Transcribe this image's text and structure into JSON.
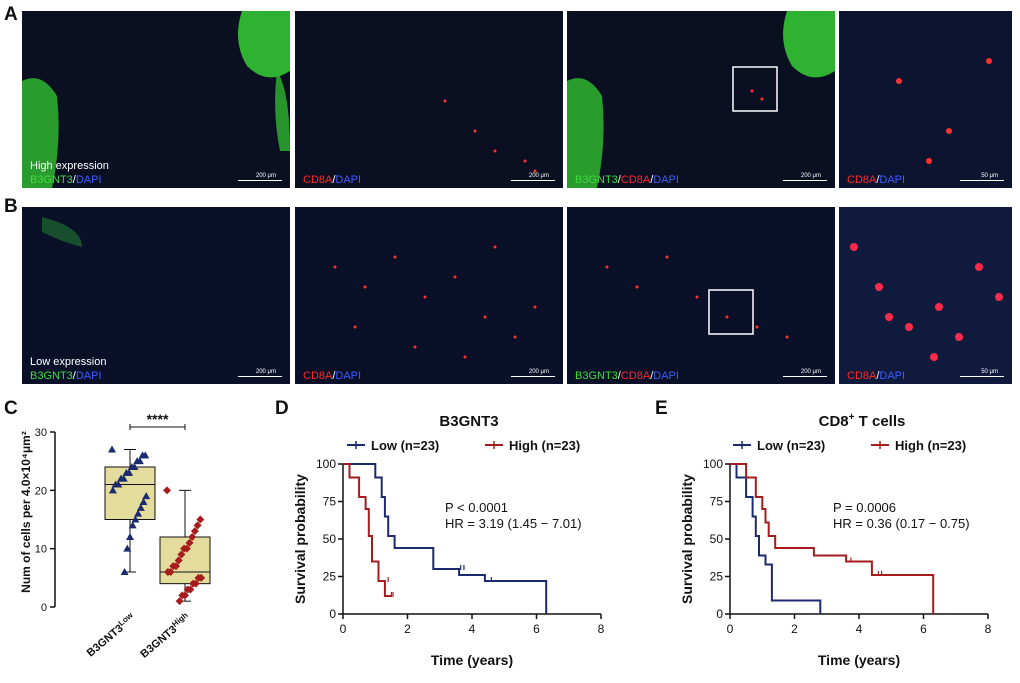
{
  "panels": {
    "a": "A",
    "b": "B",
    "c": "C",
    "d": "D",
    "e": "E"
  },
  "micrographs": {
    "row_a_expression": "High expression",
    "row_b_expression": "Low expression",
    "b3gnt3": "B3GNT3",
    "cd8a": "CD8A",
    "dapi": "DAPI",
    "slash": "/",
    "scale_200": "200 μm",
    "scale_50": "50 μm"
  },
  "colors": {
    "green_channel": "#3fdc3f",
    "red_channel": "#ff2828",
    "blue_channel": "#3c5cff",
    "low_series": "#1c2a6e",
    "high_series": "#a61c1c",
    "box_fill": "#e3dc9c"
  },
  "chart_data": [
    {
      "type": "box",
      "ylabel": "Num of cells per 4.0×10⁴μm²",
      "ylim": [
        0,
        30
      ],
      "yticks": [
        0,
        10,
        20,
        30
      ],
      "categories": [
        "B3GNT3Low",
        "B3GNT3High"
      ],
      "category_base": [
        "B3GNT3",
        "B3GNT3"
      ],
      "category_sup": [
        "Low",
        "High"
      ],
      "significance": "****",
      "series": [
        {
          "box": {
            "min": 6,
            "q1": 15,
            "median": 21,
            "q3": 24,
            "max": 27
          },
          "marker": "triangle",
          "values": [
            27,
            26,
            26,
            25,
            25,
            24,
            24,
            23,
            23,
            22,
            22,
            21,
            21,
            20,
            19,
            18,
            17,
            16,
            15,
            14,
            12,
            10,
            6
          ]
        },
        {
          "box": {
            "min": 1,
            "q1": 4,
            "median": 6,
            "q3": 12,
            "max": 20
          },
          "marker": "diamond",
          "values": [
            20,
            15,
            14,
            13,
            12,
            11,
            10,
            10,
            9,
            8,
            7,
            7,
            6,
            6,
            5,
            5,
            4,
            4,
            3,
            3,
            2,
            2,
            1
          ]
        }
      ]
    },
    {
      "type": "line",
      "title": "B3GNT3",
      "xlabel": "Time (years)",
      "ylabel": "Survival probability",
      "xlim": [
        0,
        8
      ],
      "ylim": [
        0,
        100
      ],
      "xticks": [
        0,
        2,
        4,
        6,
        8
      ],
      "yticks": [
        0,
        25,
        50,
        75,
        100
      ],
      "legend_title_low": "Low (n=23)",
      "legend_title_high": "High (n=23)",
      "annotation_p": "P < 0.0001",
      "annotation_hr": "HR = 3.19 (1.45 − 7.01)",
      "series": [
        {
          "name": "Low (n=23)",
          "steps": [
            [
              0,
              100
            ],
            [
              1.0,
              100
            ],
            [
              1.0,
              91
            ],
            [
              1.2,
              91
            ],
            [
              1.2,
              78
            ],
            [
              1.3,
              78
            ],
            [
              1.3,
              65
            ],
            [
              1.4,
              65
            ],
            [
              1.4,
              52
            ],
            [
              1.6,
              52
            ],
            [
              1.6,
              44
            ],
            [
              2.8,
              44
            ],
            [
              2.8,
              30
            ],
            [
              3.6,
              30
            ],
            [
              3.6,
              26
            ],
            [
              4.4,
              26
            ],
            [
              4.4,
              22
            ],
            [
              6.3,
              22
            ],
            [
              6.3,
              0
            ]
          ],
          "censors": [
            [
              3.65,
              30
            ],
            [
              3.75,
              30
            ],
            [
              4.6,
              22
            ]
          ]
        },
        {
          "name": "High (n=23)",
          "steps": [
            [
              0,
              100
            ],
            [
              0.2,
              100
            ],
            [
              0.2,
              91
            ],
            [
              0.5,
              91
            ],
            [
              0.5,
              78
            ],
            [
              0.7,
              78
            ],
            [
              0.7,
              70
            ],
            [
              0.8,
              70
            ],
            [
              0.8,
              52
            ],
            [
              0.9,
              52
            ],
            [
              0.9,
              35
            ],
            [
              1.1,
              35
            ],
            [
              1.1,
              22
            ],
            [
              1.3,
              22
            ],
            [
              1.3,
              12
            ],
            [
              1.5,
              12
            ]
          ],
          "censors": [
            [
              1.4,
              22
            ],
            [
              1.5,
              12
            ],
            [
              1.55,
              12
            ]
          ]
        }
      ]
    },
    {
      "type": "line",
      "title": "CD8⁺ T cells",
      "title_base": "CD8",
      "title_sup": "+",
      "title_rest": " T cells",
      "xlabel": "Time (years)",
      "ylabel": "Survival probability",
      "xlim": [
        0,
        8
      ],
      "ylim": [
        0,
        100
      ],
      "xticks": [
        0,
        2,
        4,
        6,
        8
      ],
      "yticks": [
        0,
        25,
        50,
        75,
        100
      ],
      "legend_title_low": "Low (n=23)",
      "legend_title_high": "High (n=23)",
      "annotation_p": "P = 0.0006",
      "annotation_hr": "HR = 0.36 (0.17 − 0.75)",
      "series": [
        {
          "name": "Low (n=23)",
          "steps": [
            [
              0,
              100
            ],
            [
              0.2,
              100
            ],
            [
              0.2,
              91
            ],
            [
              0.5,
              91
            ],
            [
              0.5,
              78
            ],
            [
              0.7,
              78
            ],
            [
              0.7,
              65
            ],
            [
              0.8,
              65
            ],
            [
              0.8,
              52
            ],
            [
              0.9,
              52
            ],
            [
              0.9,
              39
            ],
            [
              1.1,
              39
            ],
            [
              1.1,
              33
            ],
            [
              1.3,
              33
            ],
            [
              1.3,
              9
            ],
            [
              2.8,
              9
            ],
            [
              2.8,
              0
            ]
          ],
          "censors": []
        },
        {
          "name": "High (n=23)",
          "steps": [
            [
              0,
              100
            ],
            [
              0.5,
              100
            ],
            [
              0.5,
              91
            ],
            [
              0.8,
              91
            ],
            [
              0.8,
              78
            ],
            [
              1.0,
              78
            ],
            [
              1.0,
              70
            ],
            [
              1.1,
              70
            ],
            [
              1.1,
              61
            ],
            [
              1.2,
              61
            ],
            [
              1.2,
              52
            ],
            [
              1.4,
              52
            ],
            [
              1.4,
              44
            ],
            [
              2.6,
              44
            ],
            [
              2.6,
              39
            ],
            [
              3.6,
              39
            ],
            [
              3.6,
              35
            ],
            [
              4.4,
              35
            ],
            [
              4.4,
              26
            ],
            [
              6.3,
              26
            ],
            [
              6.3,
              0
            ]
          ],
          "censors": [
            [
              3.75,
              35
            ],
            [
              4.6,
              26
            ],
            [
              4.7,
              26
            ]
          ]
        }
      ]
    }
  ]
}
